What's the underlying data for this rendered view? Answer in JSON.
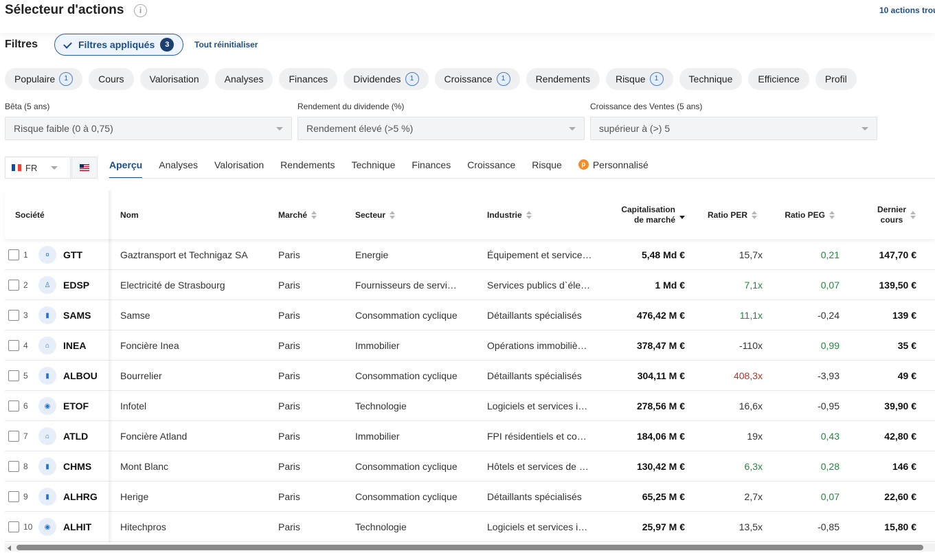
{
  "header": {
    "title": "Sélecteur d'actions",
    "info_icon": "info-icon",
    "results_count": "10 actions trou"
  },
  "filters": {
    "label": "Filtres",
    "applied_label": "Filtres appliqués",
    "applied_count": "3",
    "reset_label": "Tout réinitialiser"
  },
  "categories": [
    {
      "label": "Populaire",
      "badge": "1"
    },
    {
      "label": "Cours",
      "badge": null
    },
    {
      "label": "Valorisation",
      "badge": null
    },
    {
      "label": "Analyses",
      "badge": null
    },
    {
      "label": "Finances",
      "badge": null
    },
    {
      "label": "Dividendes",
      "badge": "1"
    },
    {
      "label": "Croissance",
      "badge": "1"
    },
    {
      "label": "Rendements",
      "badge": null
    },
    {
      "label": "Risque",
      "badge": "1"
    },
    {
      "label": "Technique",
      "badge": null
    },
    {
      "label": "Efficience",
      "badge": null
    },
    {
      "label": "Profil",
      "badge": null
    }
  ],
  "active_filters": [
    {
      "label": "Bêta (5 ans)",
      "value": "Risque faible (0 à 0,75)"
    },
    {
      "label": "Rendement du dividende (%)",
      "value": "Rendement élevé (>5 %)"
    },
    {
      "label": "Croissance des Ventes (5 ans)",
      "value": "supérieur à (>) 5"
    }
  ],
  "market": {
    "selected": "FR",
    "colors": {
      "fr_blue": "#0055a4",
      "fr_white": "#ffffff",
      "fr_red": "#ef4135"
    }
  },
  "view_tabs": [
    {
      "label": "Aperçu",
      "active": true
    },
    {
      "label": "Analyses",
      "active": false
    },
    {
      "label": "Valorisation",
      "active": false
    },
    {
      "label": "Rendements",
      "active": false
    },
    {
      "label": "Technique",
      "active": false
    },
    {
      "label": "Finances",
      "active": false
    },
    {
      "label": "Croissance",
      "active": false
    },
    {
      "label": "Risque",
      "active": false
    },
    {
      "label": "Personnalisé",
      "active": false,
      "icon": "p"
    }
  ],
  "table": {
    "columns": {
      "company": "Société",
      "name": "Nom",
      "market": "Marché",
      "sector": "Secteur",
      "industry": "Industrie",
      "cap_line1": "Capitalisation",
      "cap_line2": "de marché",
      "per": "Ratio PER",
      "peg": "Ratio PEG",
      "price_line1": "Dernier",
      "price_line2": "cours"
    },
    "rows": [
      {
        "rank": "1",
        "ticker": "GTT",
        "icon": "¤",
        "name": "Gaztransport et Technigaz SA",
        "market": "Paris",
        "sector": "Energie",
        "industry": "Équipement et service…",
        "cap": "5,48 Md €",
        "per": "15,7x",
        "per_color": "default",
        "peg": "0,21",
        "peg_color": "pos",
        "price": "147,70 €"
      },
      {
        "rank": "2",
        "ticker": "EDSP",
        "icon": "♙",
        "name": "Electricité de Strasbourg",
        "market": "Paris",
        "sector": "Fournisseurs de servi…",
        "industry": "Services publics d`éle…",
        "cap": "1 Md €",
        "per": "7,1x",
        "per_color": "pos",
        "peg": "0,07",
        "peg_color": "pos",
        "price": "139,50 €"
      },
      {
        "rank": "3",
        "ticker": "SAMS",
        "icon": "▮",
        "name": "Samse",
        "market": "Paris",
        "sector": "Consommation cyclique",
        "industry": "Détaillants spécialisés",
        "cap": "476,42 M €",
        "per": "11,1x",
        "per_color": "pos",
        "peg": "-0,24",
        "peg_color": "default",
        "price": "139 €"
      },
      {
        "rank": "4",
        "ticker": "INEA",
        "icon": "⌂",
        "name": "Foncière Inea",
        "market": "Paris",
        "sector": "Immobilier",
        "industry": "Opérations immobiliè…",
        "cap": "378,47 M €",
        "per": "-110x",
        "per_color": "default",
        "peg": "0,99",
        "peg_color": "pos",
        "price": "35 €"
      },
      {
        "rank": "5",
        "ticker": "ALBOU",
        "icon": "▮",
        "name": "Bourrelier",
        "market": "Paris",
        "sector": "Consommation cyclique",
        "industry": "Détaillants spécialisés",
        "cap": "304,11 M €",
        "per": "408,3x",
        "per_color": "red",
        "peg": "-3,93",
        "peg_color": "default",
        "price": "49 €"
      },
      {
        "rank": "6",
        "ticker": "ETOF",
        "icon": "◉",
        "name": "Infotel",
        "market": "Paris",
        "sector": "Technologie",
        "industry": "Logiciels et services i…",
        "cap": "278,56 M €",
        "per": "16,6x",
        "per_color": "default",
        "peg": "-0,95",
        "peg_color": "default",
        "price": "39,90 €"
      },
      {
        "rank": "7",
        "ticker": "ATLD",
        "icon": "⌂",
        "name": "Foncière Atland",
        "market": "Paris",
        "sector": "Immobilier",
        "industry": "FPI résidentiels et co…",
        "cap": "184,06 M €",
        "per": "19x",
        "per_color": "default",
        "peg": "0,43",
        "peg_color": "pos",
        "price": "42,80 €"
      },
      {
        "rank": "8",
        "ticker": "CHMS",
        "icon": "▮",
        "name": "Mont Blanc",
        "market": "Paris",
        "sector": "Consommation cyclique",
        "industry": "Hôtels et services de …",
        "cap": "130,42 M €",
        "per": "6,3x",
        "per_color": "pos",
        "peg": "0,28",
        "peg_color": "pos",
        "price": "146 €"
      },
      {
        "rank": "9",
        "ticker": "ALHRG",
        "icon": "▮",
        "name": "Herige",
        "market": "Paris",
        "sector": "Consommation cyclique",
        "industry": "Détaillants spécialisés",
        "cap": "65,25 M €",
        "per": "2,7x",
        "per_color": "default",
        "peg": "0,07",
        "peg_color": "pos",
        "price": "22,60 €"
      },
      {
        "rank": "10",
        "ticker": "ALHIT",
        "icon": "◉",
        "name": "Hitechpros",
        "market": "Paris",
        "sector": "Technologie",
        "industry": "Logiciels et services i…",
        "cap": "25,97 M €",
        "per": "13,5x",
        "per_color": "default",
        "peg": "-0,85",
        "peg_color": "default",
        "price": "15,80 €"
      }
    ]
  },
  "colors": {
    "accent": "#1a4f8b",
    "positive": "#1f8a3a",
    "negative": "#d0281b"
  }
}
